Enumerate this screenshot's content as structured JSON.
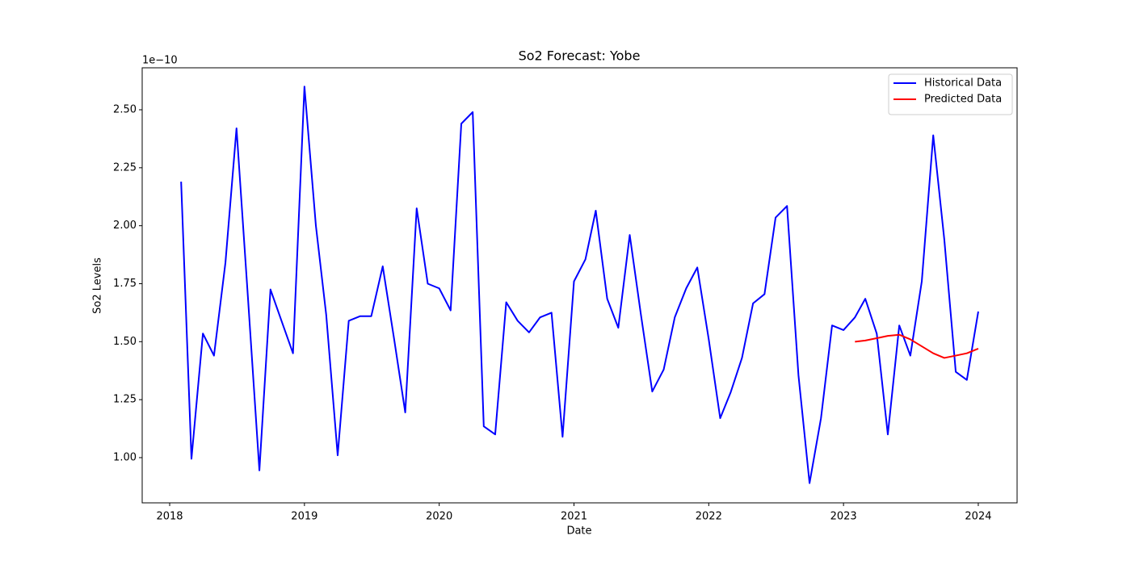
{
  "chart_data": {
    "type": "line",
    "title": "So2 Forecast: Yobe",
    "x_label": "Date",
    "y_label": "So2 Levels",
    "offset_label": "1e−10",
    "xlim": [
      2017.796,
      2024.288
    ],
    "xticks": [
      2018,
      2019,
      2020,
      2021,
      2022,
      2023,
      2024
    ],
    "ylim": [
      0.805,
      2.681
    ],
    "yticks": [
      {
        "value": 1,
        "label": "1.00"
      },
      {
        "value": 1.25,
        "label": "1.25"
      },
      {
        "value": 1.5,
        "label": "1.50"
      },
      {
        "value": 1.75,
        "label": "1.75"
      },
      {
        "value": 2,
        "label": "2.00"
      },
      {
        "value": 2.25,
        "label": "2.25"
      },
      {
        "value": 2.5,
        "label": "2.50"
      }
    ],
    "legend": "upper right",
    "series": [
      {
        "name": "Historical Data",
        "color": "#0000ff",
        "x": [
          "2018-02",
          "2018-03",
          "2018-04",
          "2018-05",
          "2018-06",
          "2018-07",
          "2018-08",
          "2018-09",
          "2018-10",
          "2018-11",
          "2018-12",
          "2019-01",
          "2019-02",
          "2019-03",
          "2019-04",
          "2019-05",
          "2019-06",
          "2019-07",
          "2019-08",
          "2019-09",
          "2019-10",
          "2019-11",
          "2019-12",
          "2020-01",
          "2020-02",
          "2020-03",
          "2020-04",
          "2020-05",
          "2020-06",
          "2020-07",
          "2020-08",
          "2020-09",
          "2020-10",
          "2020-11",
          "2020-12",
          "2021-01",
          "2021-02",
          "2021-03",
          "2021-04",
          "2021-05",
          "2021-06",
          "2021-07",
          "2021-08",
          "2021-09",
          "2021-10",
          "2021-11",
          "2021-12",
          "2022-01",
          "2022-02",
          "2022-03",
          "2022-04",
          "2022-05",
          "2022-06",
          "2022-07",
          "2022-08",
          "2022-09",
          "2022-10",
          "2022-11",
          "2022-12",
          "2023-01",
          "2023-02",
          "2023-03",
          "2023-04",
          "2023-05",
          "2023-06",
          "2023-07",
          "2023-08",
          "2023-09",
          "2023-10",
          "2023-11",
          "2023-12",
          "2024-01"
        ],
        "values": [
          2.19,
          0.995,
          1.535,
          1.44,
          1.84,
          2.42,
          1.69,
          0.945,
          1.725,
          1.585,
          1.45,
          2.6,
          2.0,
          1.615,
          1.01,
          1.59,
          1.61,
          1.61,
          1.825,
          1.51,
          1.195,
          2.075,
          1.75,
          1.73,
          1.635,
          2.44,
          2.49,
          1.135,
          1.1,
          1.67,
          1.59,
          1.54,
          1.605,
          1.625,
          1.09,
          1.76,
          1.855,
          2.065,
          1.685,
          1.56,
          1.96,
          1.62,
          1.285,
          1.38,
          1.605,
          1.73,
          1.82,
          1.51,
          1.17,
          1.28,
          1.43,
          1.665,
          1.705,
          2.035,
          2.085,
          1.355,
          0.89,
          1.17,
          1.57,
          1.55,
          1.605,
          1.685,
          1.535,
          1.1,
          1.57,
          1.44,
          1.76,
          2.39,
          1.94,
          1.37,
          1.335,
          1.63
        ]
      },
      {
        "name": "Predicted Data",
        "color": "#ff0000",
        "x": [
          "2023-02",
          "2023-03",
          "2023-04",
          "2023-05",
          "2023-06",
          "2023-07",
          "2023-08",
          "2023-09",
          "2023-10",
          "2023-11",
          "2023-12",
          "2024-01"
        ],
        "values": [
          1.5,
          1.505,
          1.515,
          1.525,
          1.53,
          1.51,
          1.48,
          1.45,
          1.43,
          1.44,
          1.45,
          1.47
        ]
      }
    ]
  }
}
